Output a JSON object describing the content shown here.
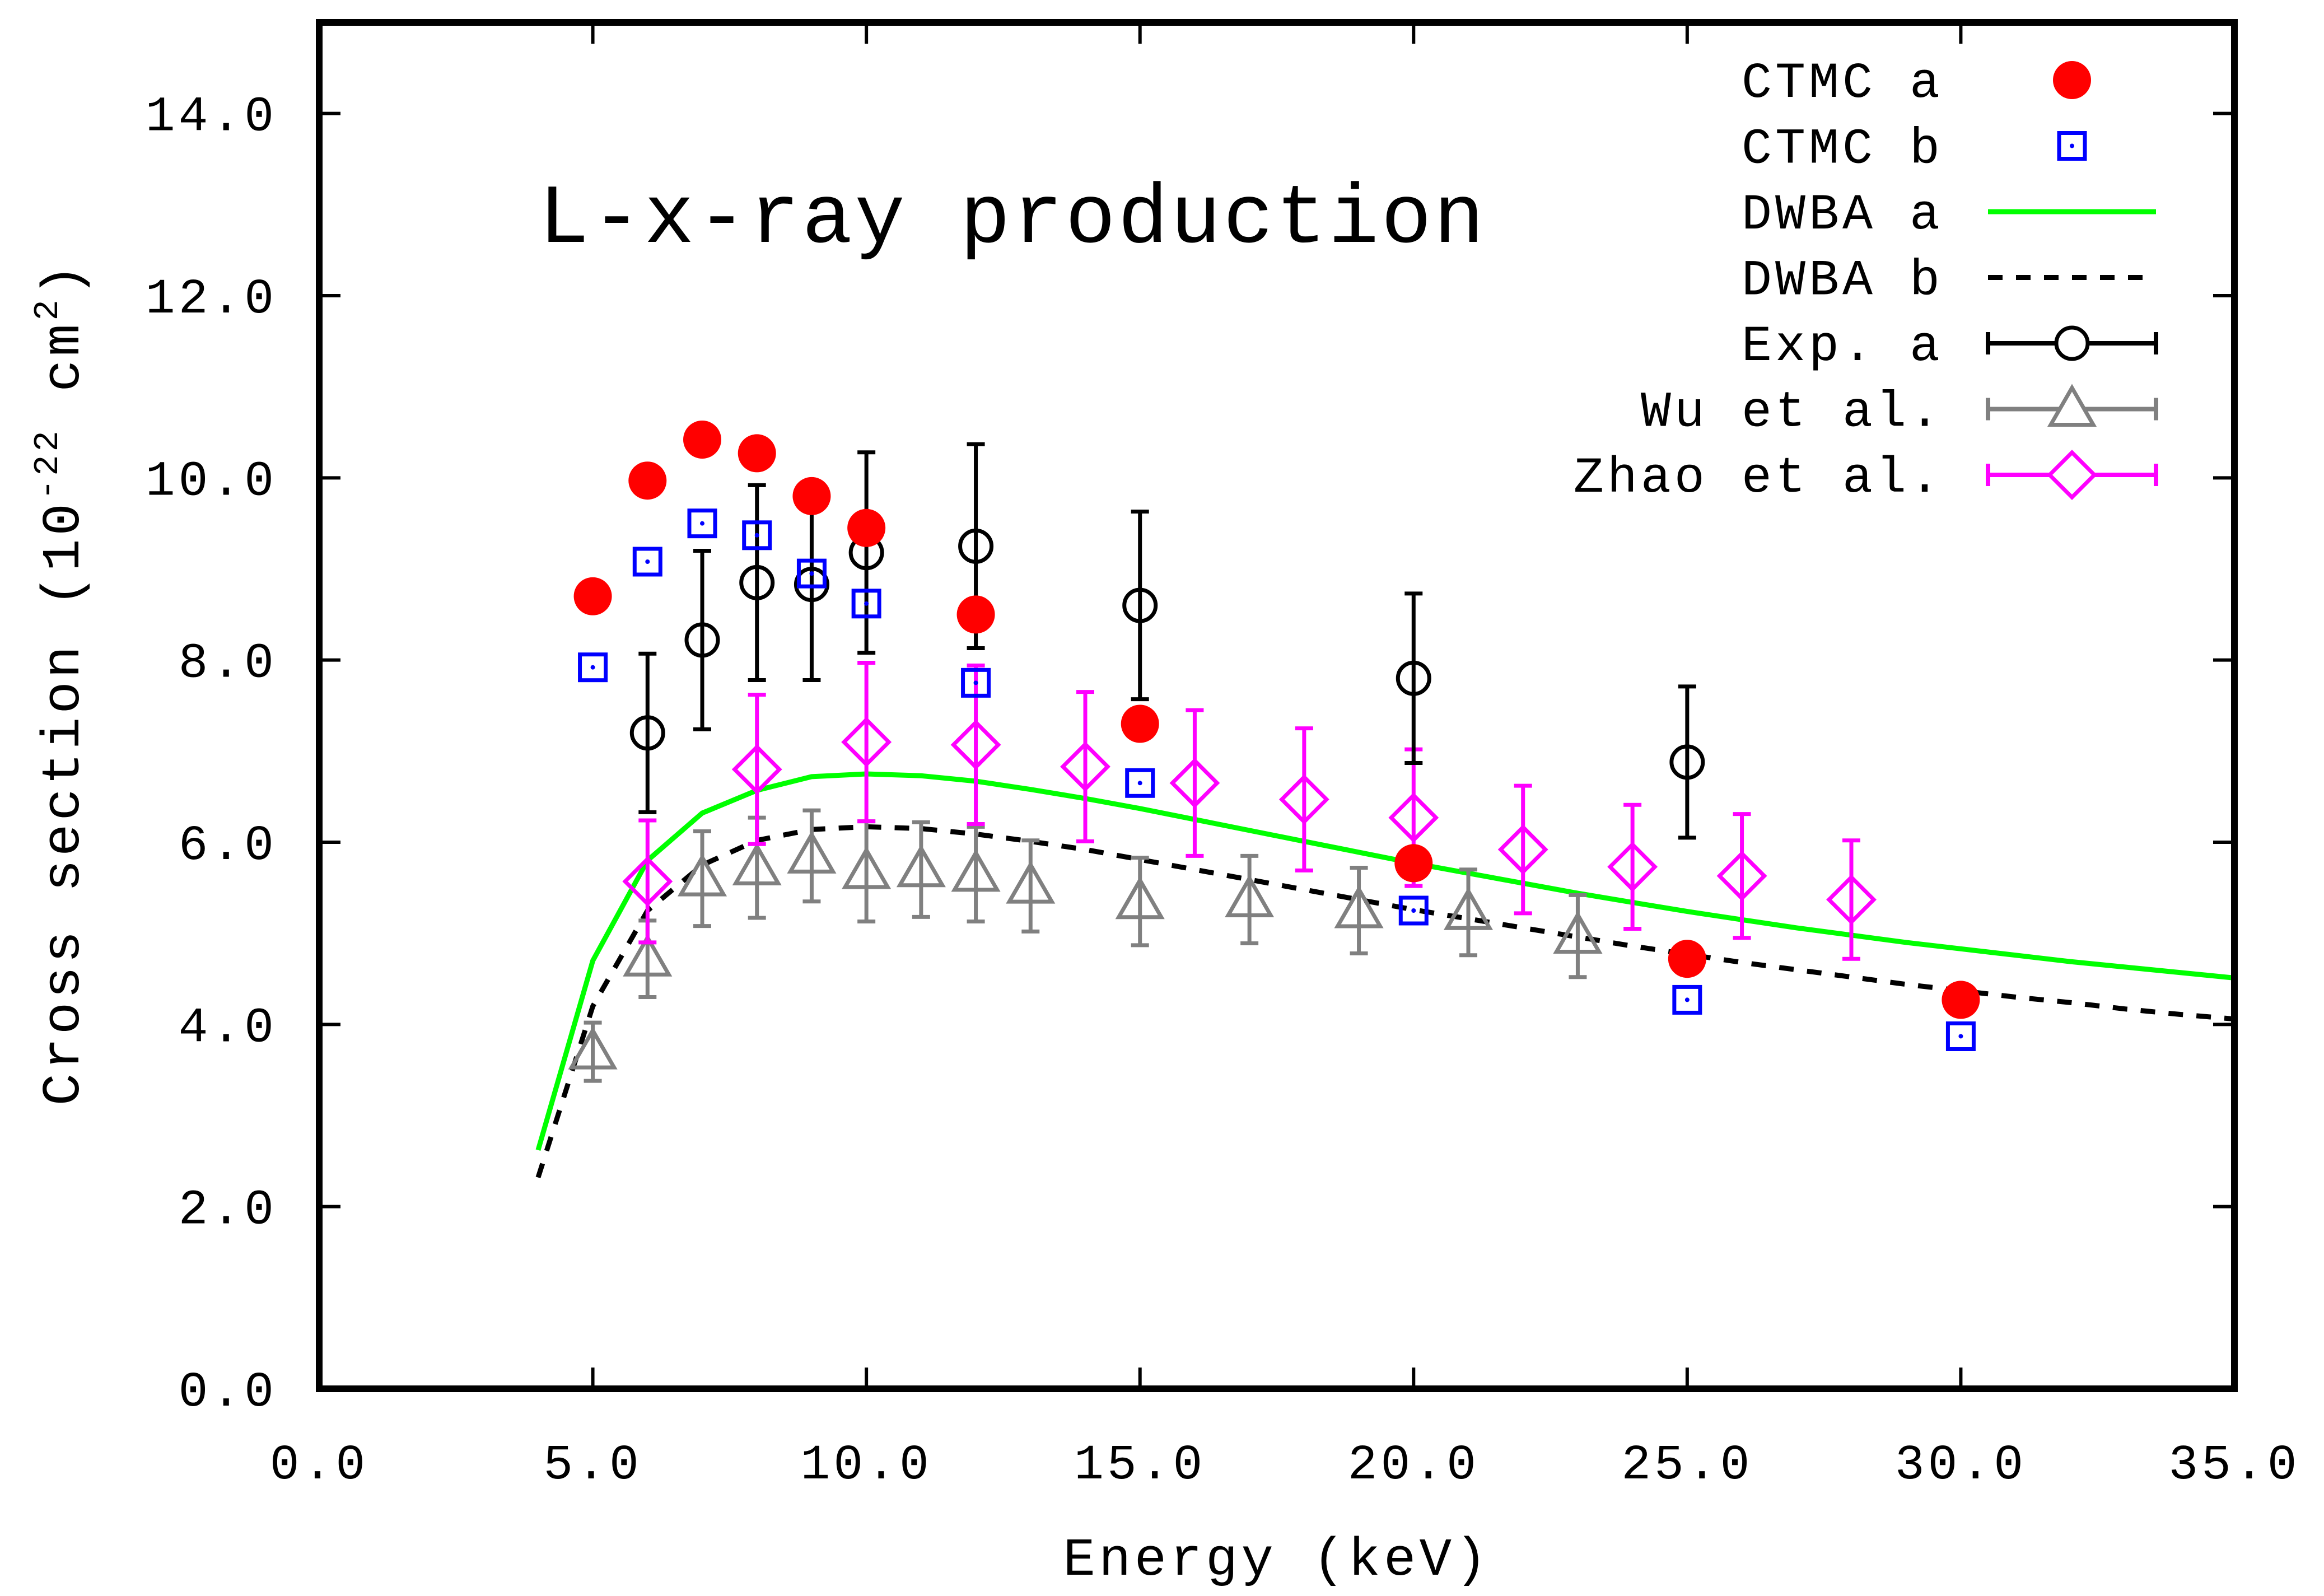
{
  "chart_data": {
    "type": "scatter",
    "title": "L-x-ray production",
    "xlabel": "Energy (keV)",
    "ylabel": {
      "prefix": "Cross section (10",
      "exp": "-22",
      "unit": " cm",
      "unit_exp": "2",
      "suffix": ")"
    },
    "xlim": [
      0,
      35
    ],
    "ylim": [
      0,
      15
    ],
    "xticks": [
      0,
      5,
      10,
      15,
      20,
      25,
      30,
      35
    ],
    "yticks": [
      0,
      2,
      4,
      6,
      8,
      10,
      12,
      14
    ],
    "xtick_labels": [
      "0.0",
      "5.0",
      "10.0",
      "15.0",
      "20.0",
      "25.0",
      "30.0",
      "35.0"
    ],
    "ytick_labels": [
      "0.0",
      "2.0",
      "4.0",
      "6.0",
      "8.0",
      "10.0",
      "12.0",
      "14.0"
    ],
    "legend_position": "top-right",
    "series": [
      {
        "name": "CTMC a",
        "kind": "points",
        "marker": "filled-circle",
        "color": "#ff0000",
        "x": [
          5,
          6,
          7,
          8,
          9,
          10,
          12,
          15,
          20,
          25,
          30
        ],
        "y": [
          8.7,
          9.97,
          10.42,
          10.27,
          9.8,
          9.45,
          8.5,
          7.3,
          5.77,
          4.72,
          4.27
        ]
      },
      {
        "name": "CTMC b",
        "kind": "points",
        "marker": "open-square-dot",
        "color": "#0000ff",
        "x": [
          5,
          6,
          7,
          8,
          9,
          10,
          12,
          15,
          20,
          25,
          30
        ],
        "y": [
          7.92,
          9.08,
          9.5,
          9.37,
          8.95,
          8.62,
          7.75,
          6.65,
          5.25,
          4.27,
          3.87
        ]
      },
      {
        "name": "DWBA a",
        "kind": "line",
        "dash": "solid",
        "color": "#00ff00",
        "x": [
          4,
          5,
          6,
          7,
          8,
          9,
          10,
          11,
          12,
          13,
          14,
          15,
          16,
          17,
          18,
          19,
          20,
          21,
          22,
          23,
          24,
          25,
          26,
          27,
          28,
          29,
          30,
          31,
          32,
          33,
          34,
          35
        ],
        "y": [
          2.62,
          4.7,
          5.8,
          6.32,
          6.57,
          6.72,
          6.75,
          6.73,
          6.67,
          6.58,
          6.48,
          6.37,
          6.25,
          6.13,
          6.01,
          5.89,
          5.77,
          5.66,
          5.55,
          5.44,
          5.34,
          5.24,
          5.15,
          5.06,
          4.98,
          4.9,
          4.83,
          4.76,
          4.69,
          4.63,
          4.57,
          4.51
        ]
      },
      {
        "name": "DWBA b",
        "kind": "line",
        "dash": "dashed",
        "color": "#000000",
        "x": [
          4,
          5,
          6,
          7,
          8,
          9,
          10,
          11,
          12,
          13,
          14,
          15,
          16,
          17,
          18,
          19,
          20,
          21,
          22,
          23,
          24,
          25,
          26,
          27,
          28,
          29,
          30,
          31,
          32,
          33,
          34,
          35
        ],
        "y": [
          2.32,
          4.2,
          5.25,
          5.75,
          6.02,
          6.14,
          6.17,
          6.15,
          6.09,
          6.01,
          5.92,
          5.81,
          5.7,
          5.59,
          5.48,
          5.37,
          5.26,
          5.16,
          5.06,
          4.96,
          4.86,
          4.77,
          4.68,
          4.6,
          4.52,
          4.44,
          4.37,
          4.3,
          4.24,
          4.17,
          4.11,
          4.06
        ]
      },
      {
        "name": "Exp. a",
        "kind": "errorbars",
        "marker": "open-circle",
        "color": "#000000",
        "x": [
          6,
          7,
          8,
          9,
          10,
          12,
          15,
          20,
          25
        ],
        "y": [
          7.2,
          8.22,
          8.85,
          8.83,
          9.18,
          9.25,
          8.6,
          7.8,
          6.88
        ],
        "err": [
          0.87,
          0.98,
          1.07,
          1.05,
          1.1,
          1.12,
          1.03,
          0.93,
          0.83
        ]
      },
      {
        "name": "Wu et al.",
        "kind": "errorbars",
        "marker": "open-triangle",
        "color": "#808080",
        "x": [
          5,
          6,
          7,
          8,
          9,
          10,
          11,
          12,
          13,
          15,
          17,
          19,
          21,
          23
        ],
        "y": [
          3.7,
          4.72,
          5.6,
          5.72,
          5.85,
          5.68,
          5.7,
          5.65,
          5.52,
          5.35,
          5.37,
          5.25,
          5.23,
          4.97
        ],
        "err": [
          0.32,
          0.42,
          0.52,
          0.55,
          0.5,
          0.55,
          0.52,
          0.52,
          0.5,
          0.48,
          0.48,
          0.47,
          0.47,
          0.45
        ]
      },
      {
        "name": "Zhao et al.",
        "kind": "errorbars",
        "marker": "open-diamond",
        "color": "#ff00ff",
        "x": [
          6,
          8,
          10,
          12,
          14,
          16,
          18,
          20,
          22,
          24,
          26,
          28
        ],
        "y": [
          5.57,
          6.8,
          7.1,
          7.07,
          6.83,
          6.65,
          6.47,
          6.27,
          5.92,
          5.73,
          5.63,
          5.37
        ],
        "err": [
          0.67,
          0.82,
          0.87,
          0.87,
          0.82,
          0.8,
          0.78,
          0.75,
          0.7,
          0.68,
          0.68,
          0.65
        ]
      }
    ]
  }
}
